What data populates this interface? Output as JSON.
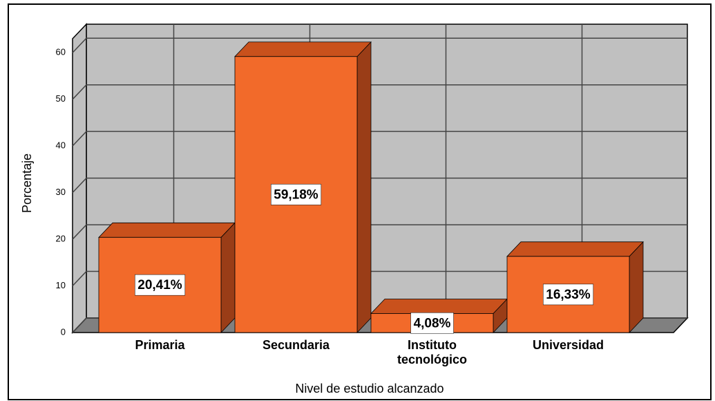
{
  "chart_data": {
    "type": "bar3d",
    "x_label": "Nivel de estudio alcanzado",
    "y_label": "Porcentaje",
    "categories": [
      "Primaria",
      "Secundaria",
      "Instituto tecnológico",
      "Universidad"
    ],
    "values": [
      20.41,
      59.18,
      4.08,
      16.33
    ],
    "value_labels": [
      "20,41%",
      "59,18%",
      "4,08%",
      "16,33%"
    ],
    "color": "#f26a2a",
    "ylim": [
      0,
      63
    ],
    "yticks": [
      0,
      10,
      20,
      30,
      40,
      50,
      60
    ],
    "grid": true
  }
}
